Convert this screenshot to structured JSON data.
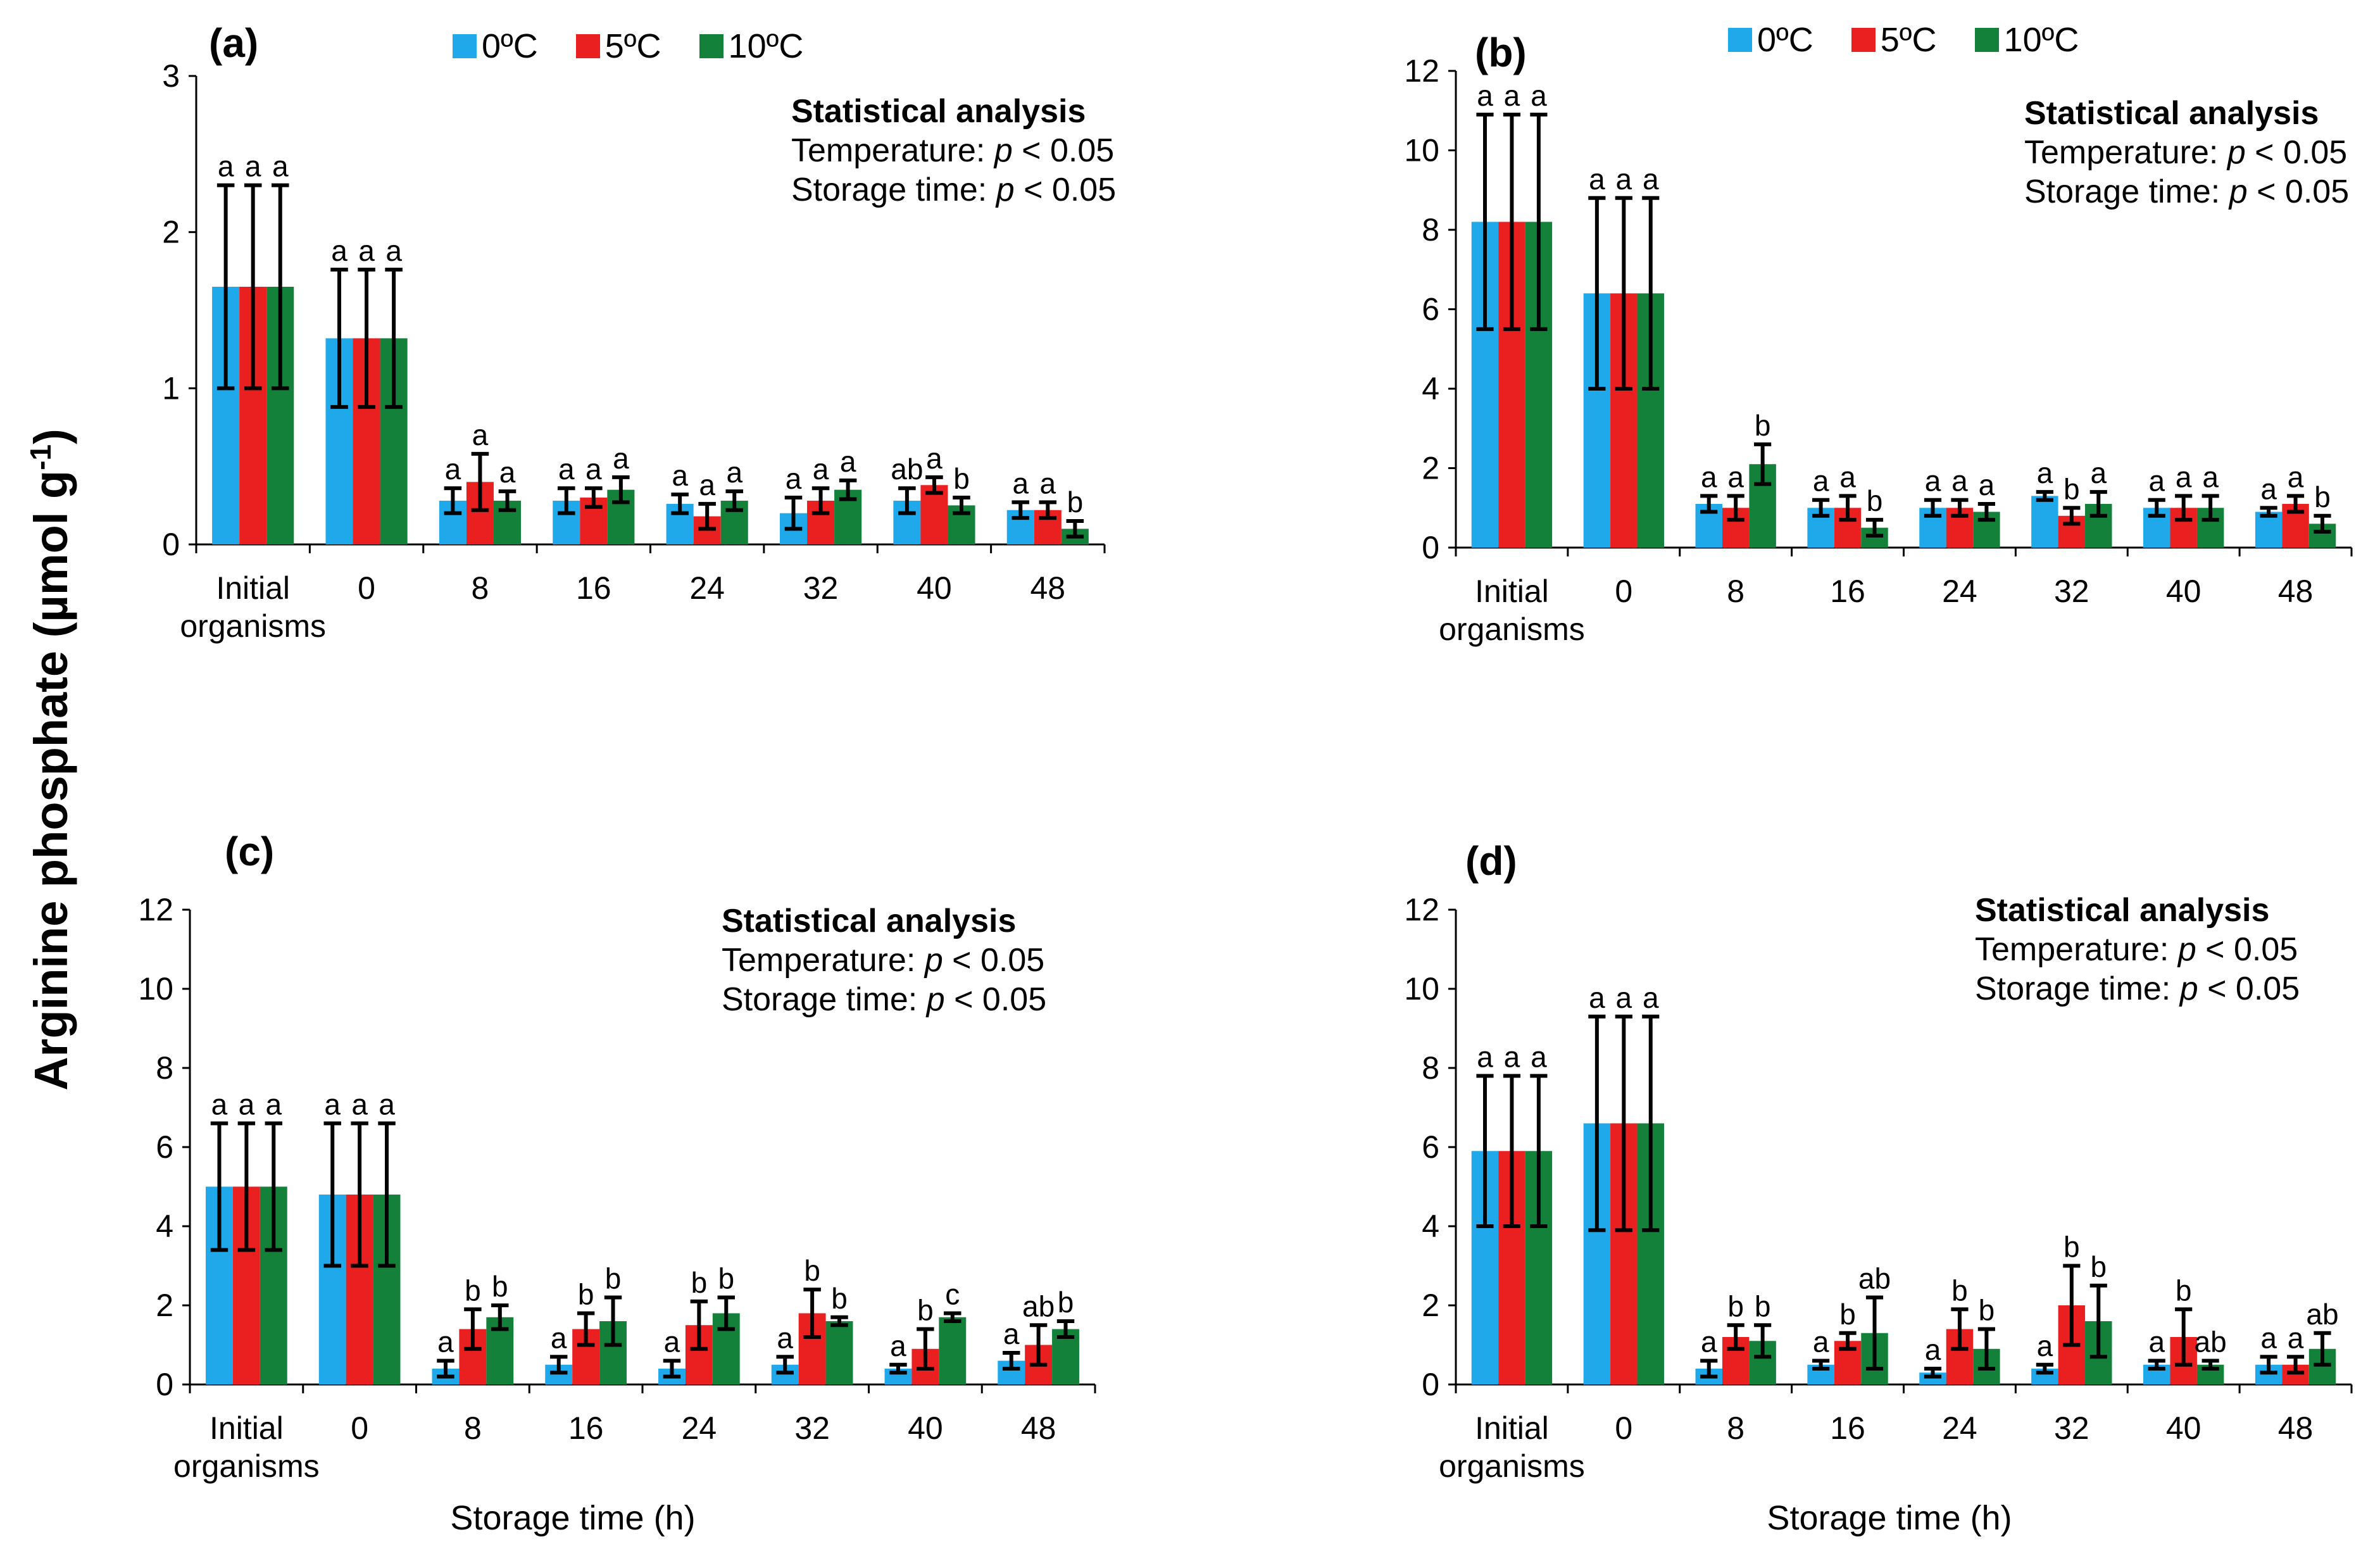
{
  "figure": {
    "ylabel_main": "Arginine phosphate (µmol g",
    "ylabel_sup": "-1",
    "ylabel_end": ")"
  },
  "legend": [
    {
      "label": "0ºC",
      "color": "#1FA9EA"
    },
    {
      "label": "5ºC",
      "color": "#EA1F1F"
    },
    {
      "label": "10ºC",
      "color": "#13813A"
    }
  ],
  "stats": {
    "title": "Statistical analysis",
    "temperature": "Temperature: p < 0.05",
    "storage": "Storage time: p < 0.05"
  },
  "chart_data": [
    {
      "type": "bar",
      "title": "(a)",
      "categories": [
        "Initial organisms",
        "0",
        "8",
        "16",
        "24",
        "32",
        "40",
        "48"
      ],
      "xlabel": "",
      "ylim": [
        0,
        3
      ],
      "yticks": [
        0,
        1,
        2,
        3
      ],
      "series": [
        {
          "name": "0ºC",
          "values": [
            1.65,
            1.32,
            0.28,
            0.28,
            0.26,
            0.2,
            0.28,
            0.22
          ],
          "errors": [
            0.65,
            0.44,
            0.08,
            0.08,
            0.06,
            0.1,
            0.08,
            0.05
          ],
          "letters": [
            "a",
            "a",
            "a",
            "a",
            "a",
            "a",
            "ab",
            "a"
          ]
        },
        {
          "name": "5ºC",
          "values": [
            1.65,
            1.32,
            0.4,
            0.3,
            0.18,
            0.28,
            0.38,
            0.22
          ],
          "errors": [
            0.65,
            0.44,
            0.18,
            0.06,
            0.08,
            0.08,
            0.05,
            0.05
          ],
          "letters": [
            "a",
            "a",
            "a",
            "a",
            "a",
            "a",
            "a",
            "a"
          ]
        },
        {
          "name": "10ºC",
          "values": [
            1.65,
            1.32,
            0.28,
            0.35,
            0.28,
            0.35,
            0.25,
            0.1
          ],
          "errors": [
            0.65,
            0.44,
            0.06,
            0.08,
            0.06,
            0.06,
            0.05,
            0.05
          ],
          "letters": [
            "a",
            "a",
            "a",
            "a",
            "a",
            "a",
            "b",
            "b"
          ]
        }
      ]
    },
    {
      "type": "bar",
      "title": "(b)",
      "categories": [
        "Initial organisms",
        "0",
        "8",
        "16",
        "24",
        "32",
        "40",
        "48"
      ],
      "xlabel": "",
      "ylim": [
        0,
        12
      ],
      "yticks": [
        0,
        2,
        4,
        6,
        8,
        10,
        12
      ],
      "series": [
        {
          "name": "0ºC",
          "values": [
            8.2,
            6.4,
            1.1,
            1.0,
            1.0,
            1.3,
            1.0,
            0.9
          ],
          "errors": [
            2.7,
            2.4,
            0.2,
            0.2,
            0.2,
            0.1,
            0.2,
            0.1
          ],
          "letters": [
            "a",
            "a",
            "a",
            "a",
            "a",
            "a",
            "a",
            "a"
          ]
        },
        {
          "name": "5ºC",
          "values": [
            8.2,
            6.4,
            1.0,
            1.0,
            1.0,
            0.8,
            1.0,
            1.1
          ],
          "errors": [
            2.7,
            2.4,
            0.3,
            0.3,
            0.2,
            0.2,
            0.3,
            0.2
          ],
          "letters": [
            "a",
            "a",
            "a",
            "a",
            "a",
            "b",
            "a",
            "a"
          ]
        },
        {
          "name": "10ºC",
          "values": [
            8.2,
            6.4,
            2.1,
            0.5,
            0.9,
            1.1,
            1.0,
            0.6
          ],
          "errors": [
            2.7,
            2.4,
            0.5,
            0.2,
            0.2,
            0.3,
            0.3,
            0.2
          ],
          "letters": [
            "a",
            "a",
            "b",
            "b",
            "a",
            "a",
            "a",
            "b"
          ]
        }
      ]
    },
    {
      "type": "bar",
      "title": "(c)",
      "categories": [
        "Initial organisms",
        "0",
        "8",
        "16",
        "24",
        "32",
        "40",
        "48"
      ],
      "xlabel": "Storage time (h)",
      "ylim": [
        0,
        12
      ],
      "yticks": [
        0,
        2,
        4,
        6,
        8,
        10,
        12
      ],
      "series": [
        {
          "name": "0ºC",
          "values": [
            5.0,
            4.8,
            0.4,
            0.5,
            0.4,
            0.5,
            0.4,
            0.6
          ],
          "errors": [
            1.6,
            1.8,
            0.2,
            0.2,
            0.2,
            0.2,
            0.1,
            0.2
          ],
          "letters": [
            "a",
            "a",
            "a",
            "a",
            "a",
            "a",
            "a",
            "a"
          ]
        },
        {
          "name": "5ºC",
          "values": [
            5.0,
            4.8,
            1.4,
            1.4,
            1.5,
            1.8,
            0.9,
            1.0
          ],
          "errors": [
            1.6,
            1.8,
            0.5,
            0.4,
            0.6,
            0.6,
            0.5,
            0.5
          ],
          "letters": [
            "a",
            "a",
            "b",
            "b",
            "b",
            "b",
            "b",
            "ab"
          ]
        },
        {
          "name": "10ºC",
          "values": [
            5.0,
            4.8,
            1.7,
            1.6,
            1.8,
            1.6,
            1.7,
            1.4
          ],
          "errors": [
            1.6,
            1.8,
            0.3,
            0.6,
            0.4,
            0.1,
            0.1,
            0.2
          ],
          "letters": [
            "a",
            "a",
            "b",
            "b",
            "b",
            "b",
            "c",
            "b"
          ]
        }
      ]
    },
    {
      "type": "bar",
      "title": "(d)",
      "categories": [
        "Initial organisms",
        "0",
        "8",
        "16",
        "24",
        "32",
        "40",
        "48"
      ],
      "xlabel": "Storage time (h)",
      "ylim": [
        0,
        12
      ],
      "yticks": [
        0,
        2,
        4,
        6,
        8,
        10,
        12
      ],
      "series": [
        {
          "name": "0ºC",
          "values": [
            5.9,
            6.6,
            0.4,
            0.5,
            0.3,
            0.4,
            0.5,
            0.5
          ],
          "errors": [
            1.9,
            2.7,
            0.2,
            0.1,
            0.1,
            0.1,
            0.1,
            0.2
          ],
          "letters": [
            "a",
            "a",
            "a",
            "a",
            "a",
            "a",
            "a",
            "a"
          ]
        },
        {
          "name": "5ºC",
          "values": [
            5.9,
            6.6,
            1.2,
            1.1,
            1.4,
            2.0,
            1.2,
            0.5
          ],
          "errors": [
            1.9,
            2.7,
            0.3,
            0.2,
            0.5,
            1.0,
            0.7,
            0.2
          ],
          "letters": [
            "a",
            "a",
            "b",
            "b",
            "b",
            "b",
            "b",
            "a"
          ]
        },
        {
          "name": "10ºC",
          "values": [
            5.9,
            6.6,
            1.1,
            1.3,
            0.9,
            1.6,
            0.5,
            0.9
          ],
          "errors": [
            1.9,
            2.7,
            0.4,
            0.9,
            0.5,
            0.9,
            0.1,
            0.4
          ],
          "letters": [
            "a",
            "a",
            "b",
            "ab",
            "b",
            "b",
            "ab",
            "ab"
          ]
        }
      ]
    }
  ]
}
